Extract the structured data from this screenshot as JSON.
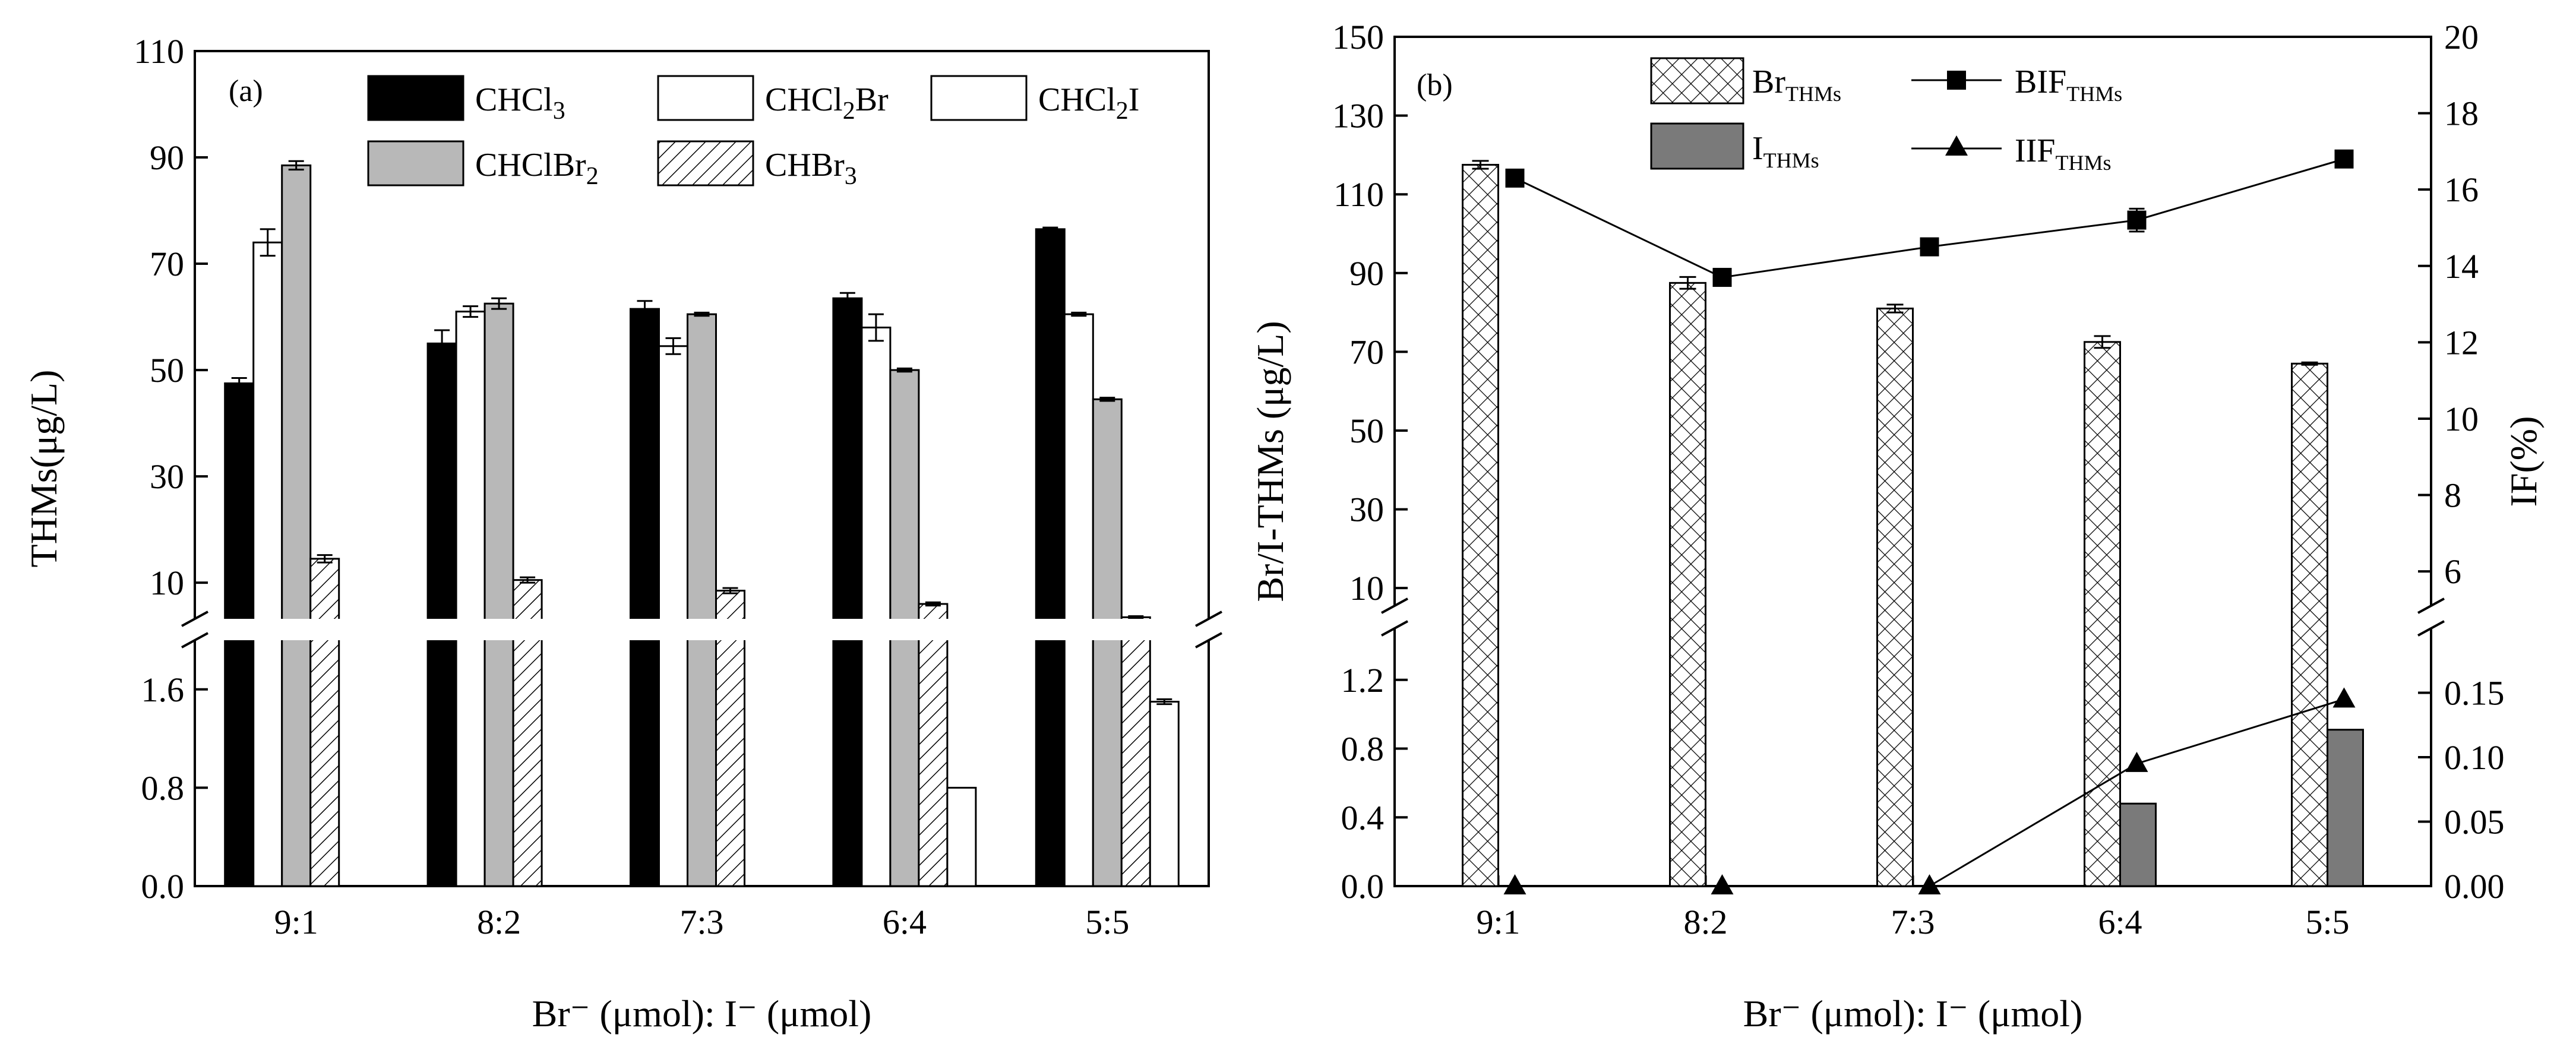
{
  "chart_data": [
    {
      "panel": "(a)",
      "type": "bar",
      "categories": [
        "9:1",
        "8:2",
        "7:3",
        "6:4",
        "5:5"
      ],
      "xlabel": "Br⁻ (μmol): I⁻ (μmol)",
      "ylabel": "THMs(μg/L)",
      "axis_break": true,
      "ylim_upper": [
        0,
        110
      ],
      "ylim_lower": [
        0,
        2.0
      ],
      "yticks_upper": [
        "10",
        "30",
        "50",
        "70",
        "90",
        "110"
      ],
      "yticks_lower": [
        "0.0",
        "0.8",
        "1.6"
      ],
      "series": [
        {
          "name": "CHCl3",
          "label_main": "CHCl",
          "label_sub": "3",
          "label_after": "",
          "style": "black",
          "values": [
            47.5,
            55,
            61.5,
            63.5,
            76.5
          ],
          "errors": [
            1.0,
            2.5,
            1.5,
            1.0,
            0.3
          ]
        },
        {
          "name": "CHCl2Br",
          "label_main": "CHCl",
          "label_sub": "2",
          "label_after": "Br",
          "style": "white",
          "values": [
            74,
            61,
            54.5,
            58,
            60.5
          ],
          "errors": [
            2.5,
            1.0,
            1.5,
            2.5,
            0.3
          ]
        },
        {
          "name": "CHClBr2",
          "label_main": "CHClBr",
          "label_sub": "2",
          "label_after": "",
          "style": "gray",
          "values": [
            88.5,
            62.5,
            60.5,
            50,
            44.5
          ],
          "errors": [
            0.8,
            1.0,
            0.3,
            0.3,
            0.3
          ]
        },
        {
          "name": "CHBr3",
          "label_main": "CHBr",
          "label_sub": "3",
          "label_after": "",
          "style": "hatch",
          "values": [
            14.5,
            10.5,
            8.5,
            6,
            3.5
          ],
          "errors": [
            0.7,
            0.5,
            0.5,
            0.3,
            0.2
          ]
        },
        {
          "name": "CHCl2I",
          "label_main": "CHCl",
          "label_sub": "2",
          "label_after": "I",
          "style": "white",
          "values": [
            null,
            null,
            null,
            0.8,
            1.5
          ],
          "errors": [
            null,
            null,
            null,
            0,
            0.02
          ]
        }
      ]
    },
    {
      "panel": "(b)",
      "type": "bar+line",
      "categories": [
        "9:1",
        "8:2",
        "7:3",
        "6:4",
        "5:5"
      ],
      "xlabel": "Br⁻ (μmol): I⁻ (μmol)",
      "ylabel_left": "Br/I-THMs (μg/L)",
      "ylabel_right": "IF(%)",
      "axis_break": true,
      "ylim_left_upper": [
        0,
        150
      ],
      "ylim_left_lower": [
        0,
        1.5
      ],
      "ylim_right_upper": [
        5,
        20
      ],
      "ylim_right_lower": [
        0,
        0.2
      ],
      "yticks_left_upper": [
        "10",
        "30",
        "50",
        "70",
        "90",
        "110",
        "130",
        "150"
      ],
      "yticks_left_lower": [
        "0.0",
        "0.4",
        "0.8",
        "1.2"
      ],
      "yticks_right_upper": [
        "6",
        "8",
        "10",
        "12",
        "14",
        "16",
        "18",
        "20"
      ],
      "yticks_right_lower": [
        "0.00",
        "0.05",
        "0.10",
        "0.15"
      ],
      "bar_series": [
        {
          "name": "BrTHMs",
          "label_main": "Br",
          "label_sub": "THMs",
          "style": "crosshatch",
          "values": [
            117.5,
            87.5,
            81,
            72.5,
            67
          ],
          "errors": [
            1.0,
            1.5,
            1.0,
            1.5,
            0.3
          ]
        },
        {
          "name": "ITHMs",
          "label_main": "I",
          "label_sub": "THMs",
          "style": "darkgray",
          "values": [
            0,
            0,
            0,
            0.48,
            0.91
          ],
          "errors": [
            0,
            0,
            0,
            0,
            0
          ]
        }
      ],
      "line_series": [
        {
          "name": "BIFTHMs",
          "label_main": "BIF",
          "label_sub": "THMs",
          "marker": "square",
          "axis": "right-upper",
          "values": [
            16.3,
            13.7,
            14.5,
            15.2,
            16.8
          ],
          "errors": [
            0,
            0,
            0,
            0.3,
            0
          ]
        },
        {
          "name": "IIFTHMs",
          "label_main": "IIF",
          "label_sub": "THMs",
          "marker": "triangle",
          "axis": "right-lower",
          "values": [
            0,
            0,
            0,
            0.095,
            0.145
          ],
          "errors": [
            0,
            0,
            0,
            0,
            0
          ]
        }
      ]
    }
  ]
}
